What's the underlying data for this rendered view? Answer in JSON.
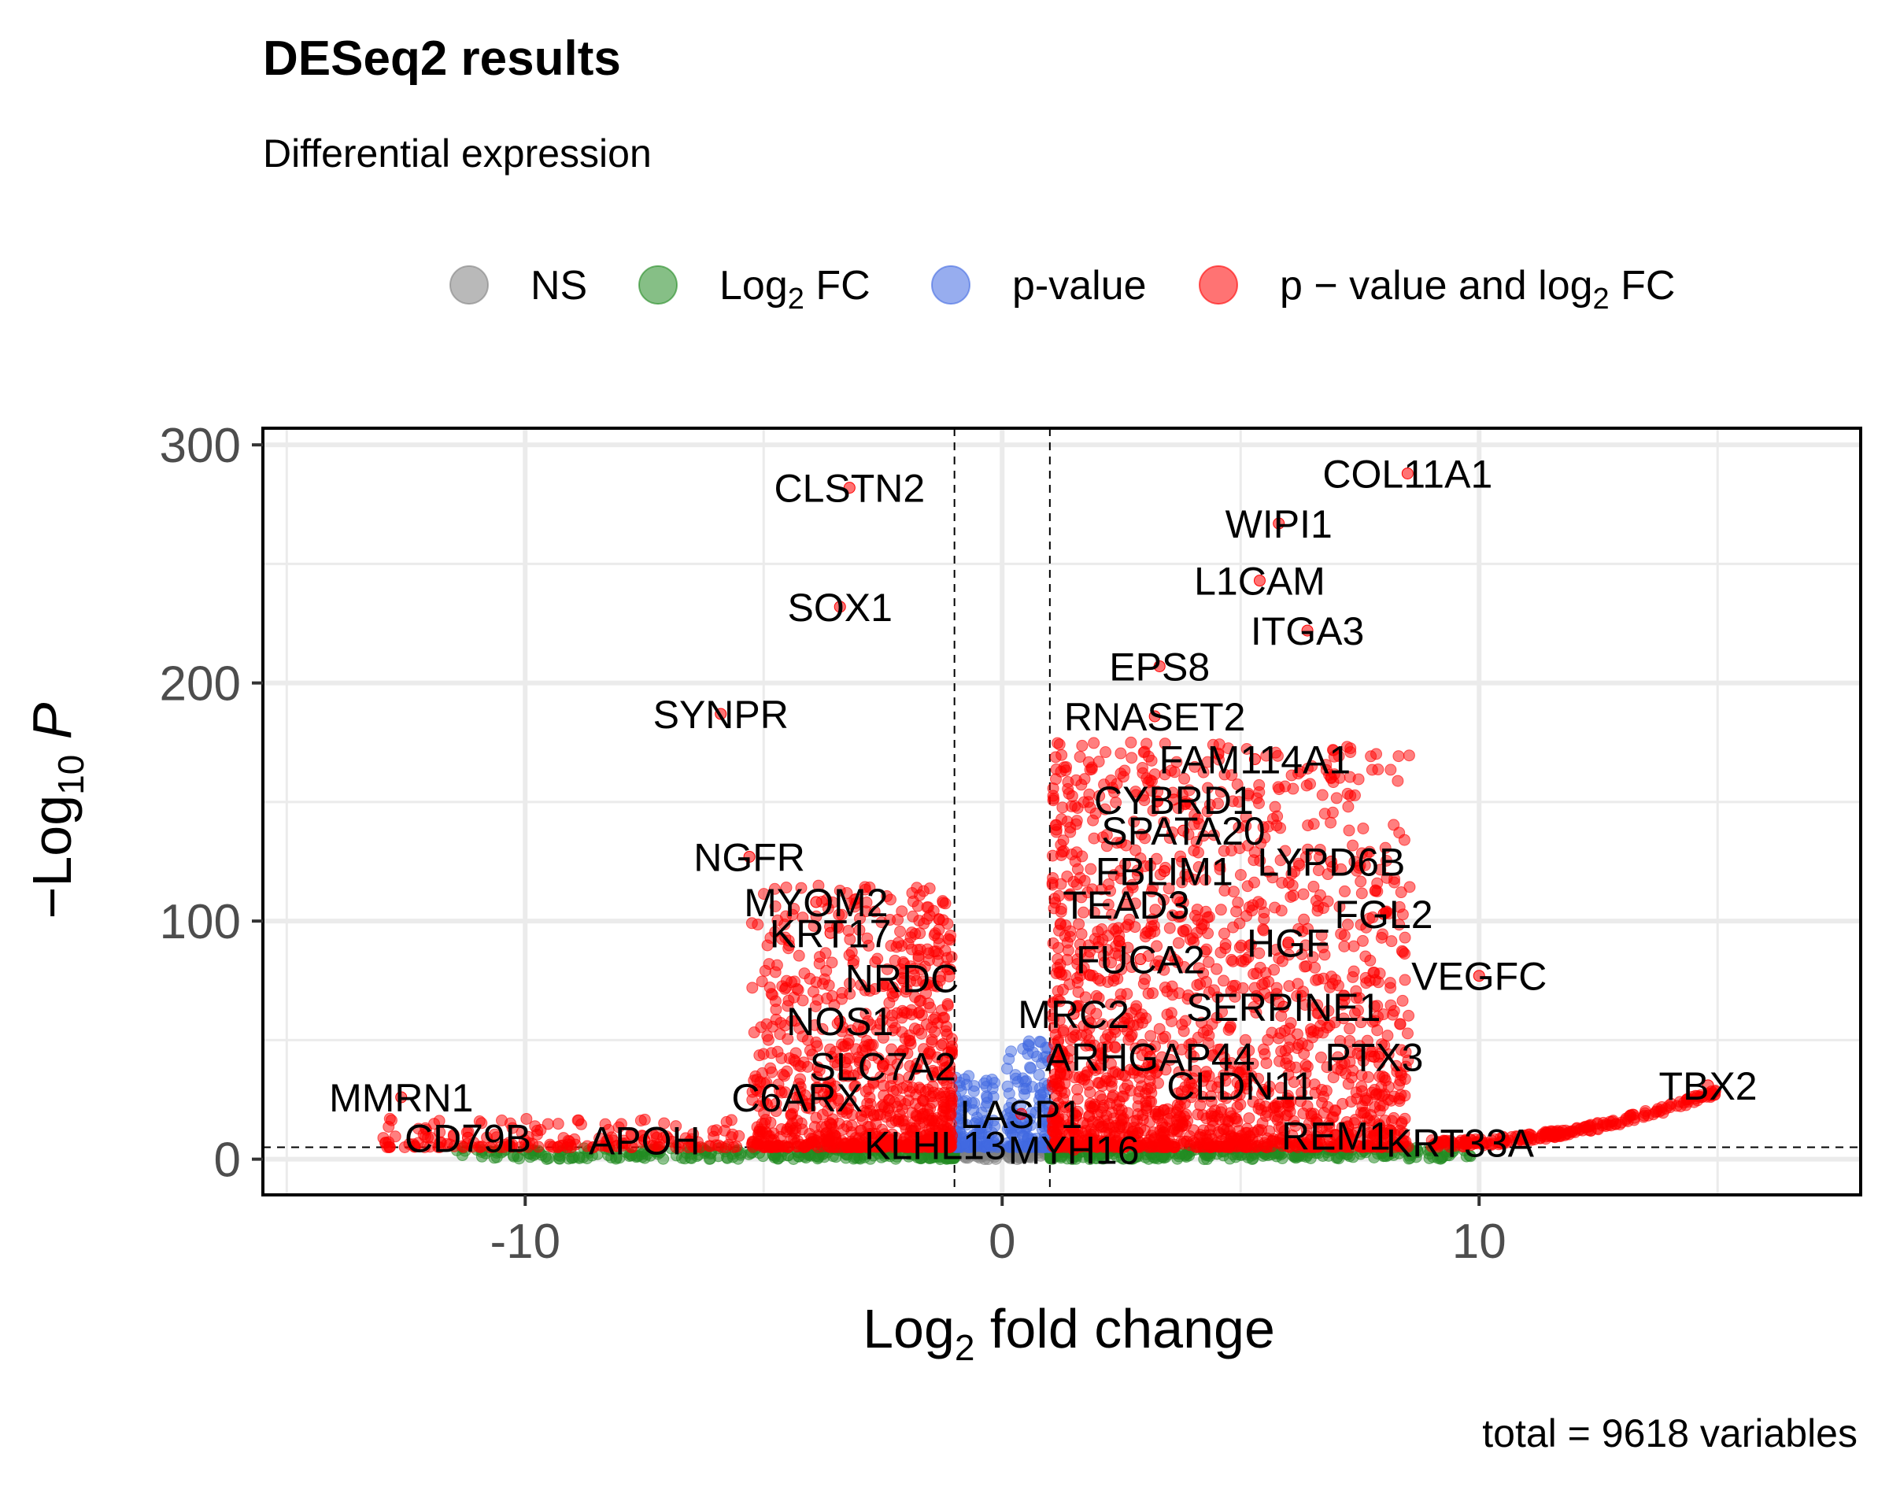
{
  "chart_data": {
    "type": "scatter",
    "title": "DESeq2 results",
    "subtitle": "Differential expression",
    "xlabel": {
      "base": "Log",
      "sub": "2",
      "rest": " fold change"
    },
    "ylabel": {
      "pre": "−Log",
      "sub": "10",
      "var": "P"
    },
    "caption": "total = 9618 variables",
    "xlim": [
      -15.5,
      18
    ],
    "ylim": [
      -15,
      307
    ],
    "x_ticks": [
      -10,
      0,
      10
    ],
    "x_tick_labels": [
      "-10",
      "0",
      "10"
    ],
    "y_ticks": [
      0,
      100,
      200,
      300
    ],
    "y_tick_labels": [
      "0",
      "100",
      "200",
      "300"
    ],
    "grid": true,
    "thresholds": {
      "fc_cutoff": 1,
      "p_cutoff": 5
    },
    "colors": {
      "NS": "#808080",
      "log2fc": "#228B22",
      "pvalue": "#4169E1",
      "both": "#FF0000",
      "grid": "#ebebeb",
      "text": "#000000",
      "axis_text": "#4d4d4d"
    },
    "legend": {
      "position": "top",
      "entries": [
        {
          "key": "NS",
          "parts": [
            {
              "t": "NS"
            }
          ]
        },
        {
          "key": "log2fc",
          "parts": [
            {
              "t": "Log"
            },
            {
              "t": "2",
              "sub": true
            },
            {
              "t": " FC"
            }
          ]
        },
        {
          "key": "pvalue",
          "parts": [
            {
              "t": "p-value"
            }
          ]
        },
        {
          "key": "both",
          "parts": [
            {
              "t": "p − value and log"
            },
            {
              "t": "2",
              "sub": true
            },
            {
              "t": " FC"
            }
          ]
        }
      ]
    },
    "labeled_genes": [
      {
        "gene": "COL11A1",
        "x": 8.5,
        "y": 288
      },
      {
        "gene": "CLSTN2",
        "x": -3.2,
        "y": 282
      },
      {
        "gene": "WIPI1",
        "x": 5.8,
        "y": 267
      },
      {
        "gene": "L1CAM",
        "x": 5.4,
        "y": 243
      },
      {
        "gene": "SOX1",
        "x": -3.4,
        "y": 232
      },
      {
        "gene": "ITGA3",
        "x": 6.4,
        "y": 222
      },
      {
        "gene": "EPS8",
        "x": 3.3,
        "y": 207
      },
      {
        "gene": "SYNPR",
        "x": -5.9,
        "y": 187
      },
      {
        "gene": "RNASET2",
        "x": 3.2,
        "y": 186
      },
      {
        "gene": "FAM114A1",
        "x": 5.3,
        "y": 168
      },
      {
        "gene": "CYBRD1",
        "x": 3.6,
        "y": 151
      },
      {
        "gene": "SPATA20",
        "x": 3.8,
        "y": 138
      },
      {
        "gene": "NGFR",
        "x": -5.3,
        "y": 127
      },
      {
        "gene": "LYPD6B",
        "x": 6.9,
        "y": 125
      },
      {
        "gene": "FBLIM1",
        "x": 3.4,
        "y": 121
      },
      {
        "gene": "MYOM2",
        "x": -3.9,
        "y": 108
      },
      {
        "gene": "TEAD3",
        "x": 2.6,
        "y": 107
      },
      {
        "gene": "FGL2",
        "x": 8.0,
        "y": 103
      },
      {
        "gene": "KRT17",
        "x": -3.6,
        "y": 95
      },
      {
        "gene": "HGF",
        "x": 6.0,
        "y": 91
      },
      {
        "gene": "VEGFC",
        "x": 10.0,
        "y": 77
      },
      {
        "gene": "FUCA2",
        "x": 2.9,
        "y": 84
      },
      {
        "gene": "NRDC",
        "x": -2.1,
        "y": 76
      },
      {
        "gene": "SERPINE1",
        "x": 5.9,
        "y": 64
      },
      {
        "gene": "MRC2",
        "x": 1.5,
        "y": 61
      },
      {
        "gene": "NOS1",
        "x": -3.4,
        "y": 58
      },
      {
        "gene": "ARHGAP44",
        "x": 3.1,
        "y": 43
      },
      {
        "gene": "PTX3",
        "x": 7.8,
        "y": 43
      },
      {
        "gene": "SLC7A2",
        "x": -2.5,
        "y": 39
      },
      {
        "gene": "TBX2",
        "x": 14.8,
        "y": 31
      },
      {
        "gene": "C6ARX",
        "x": -4.3,
        "y": 26
      },
      {
        "gene": "CLDN11",
        "x": 5.0,
        "y": 31
      },
      {
        "gene": "MMRN1",
        "x": -12.6,
        "y": 26
      },
      {
        "gene": "LASP1",
        "x": 0.4,
        "y": 19
      },
      {
        "gene": "CD79B",
        "x": -11.2,
        "y": 9
      },
      {
        "gene": "APOH",
        "x": -7.5,
        "y": 8
      },
      {
        "gene": "REM1",
        "x": 7.0,
        "y": 10
      },
      {
        "gene": "KLHL13",
        "x": -1.4,
        "y": 6
      },
      {
        "gene": "MYH16",
        "x": 1.5,
        "y": 4
      },
      {
        "gene": "KRT33A",
        "x": 9.6,
        "y": 7
      }
    ]
  }
}
